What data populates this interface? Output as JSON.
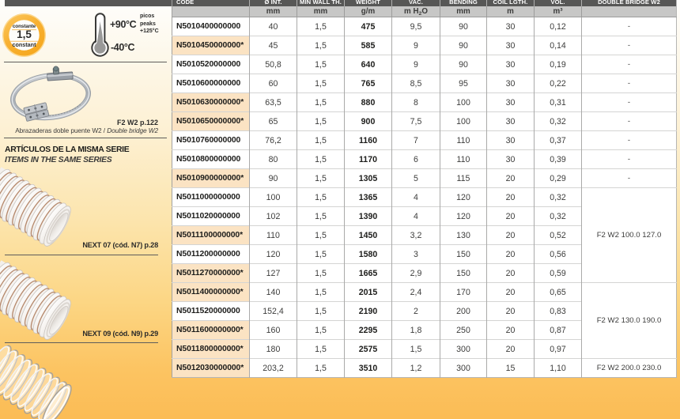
{
  "page": {
    "type": "catalog-datasheet-page",
    "colors": {
      "background_top": "#fefefc",
      "background_bottom": "#fbbc55",
      "header_bar": "#575756",
      "units_row": "#c7c7c6",
      "highlight_peach": "#fbe3c3",
      "badge_orange": "#f8b133"
    }
  },
  "sidebar": {
    "badge": {
      "top_label": "constante",
      "value": "1,5",
      "bottom_label": "constant"
    },
    "thermometer": {
      "max_temp": "+90°C",
      "min_temp": "-40°C",
      "peak_lines": [
        "picos",
        "peaks",
        "+125°C"
      ]
    },
    "clamp": {
      "page_ref": "F2 W2 p.122",
      "caption_es": "Abrazaderas doble puente W2 / ",
      "caption_en": "Double bridge W2"
    },
    "same_series": {
      "title_es": "ARTÍCULOS DE LA MISMA SERIE",
      "title_en": "ITEMS IN THE SAME SERIES",
      "items": [
        {
          "label": "NEXT 07 (cód. N7) p.28"
        },
        {
          "label": "NEXT 09 (cód. N9) p.29"
        }
      ]
    }
  },
  "table": {
    "columns": [
      {
        "label": "CODE",
        "unit": ""
      },
      {
        "label": "Ø INT.",
        "unit": "mm"
      },
      {
        "label": "MIN WALL TH.",
        "unit": "mm"
      },
      {
        "label": "WEIGHT",
        "unit": "g/m"
      },
      {
        "label": "VAC.",
        "unit": "m H₂O"
      },
      {
        "label": "BENDING",
        "unit": "mm"
      },
      {
        "label": "COIL LGTH.",
        "unit": "m"
      },
      {
        "label": "VOL.",
        "unit": "m³"
      },
      {
        "label": "DOUBLE BRIDGE W2",
        "unit": ""
      }
    ],
    "rows": [
      {
        "code": "N5010400000000",
        "starred": false,
        "values": [
          "40",
          "1,5",
          "475",
          "9,5",
          "90",
          "30",
          "0,12"
        ]
      },
      {
        "code": "N5010450000000*",
        "starred": true,
        "values": [
          "45",
          "1,5",
          "585",
          "9",
          "90",
          "30",
          "0,14"
        ]
      },
      {
        "code": "N5010520000000",
        "starred": false,
        "values": [
          "50,8",
          "1,5",
          "640",
          "9",
          "90",
          "30",
          "0,19"
        ]
      },
      {
        "code": "N5010600000000",
        "starred": false,
        "values": [
          "60",
          "1,5",
          "765",
          "8,5",
          "95",
          "30",
          "0,22"
        ]
      },
      {
        "code": "N5010630000000*",
        "starred": true,
        "values": [
          "63,5",
          "1,5",
          "880",
          "8",
          "100",
          "30",
          "0,31"
        ]
      },
      {
        "code": "N5010650000000*",
        "starred": true,
        "values": [
          "65",
          "1,5",
          "900",
          "7,5",
          "100",
          "30",
          "0,32"
        ]
      },
      {
        "code": "N5010760000000",
        "starred": false,
        "values": [
          "76,2",
          "1,5",
          "1160",
          "7",
          "110",
          "30",
          "0,37"
        ]
      },
      {
        "code": "N5010800000000",
        "starred": false,
        "values": [
          "80",
          "1,5",
          "1170",
          "6",
          "110",
          "30",
          "0,39"
        ]
      },
      {
        "code": "N5010900000000*",
        "starred": true,
        "values": [
          "90",
          "1,5",
          "1305",
          "5",
          "115",
          "20",
          "0,29"
        ]
      },
      {
        "code": "N5011000000000",
        "starred": false,
        "values": [
          "100",
          "1,5",
          "1365",
          "4",
          "120",
          "20",
          "0,32"
        ]
      },
      {
        "code": "N5011020000000",
        "starred": false,
        "values": [
          "102",
          "1,5",
          "1390",
          "4",
          "120",
          "20",
          "0,32"
        ]
      },
      {
        "code": "N5011100000000*",
        "starred": true,
        "values": [
          "110",
          "1,5",
          "1450",
          "3,2",
          "130",
          "20",
          "0,52"
        ]
      },
      {
        "code": "N5011200000000",
        "starred": false,
        "values": [
          "120",
          "1,5",
          "1580",
          "3",
          "150",
          "20",
          "0,56"
        ]
      },
      {
        "code": "N5011270000000*",
        "starred": true,
        "values": [
          "127",
          "1,5",
          "1665",
          "2,9",
          "150",
          "20",
          "0,59"
        ]
      },
      {
        "code": "N5011400000000*",
        "starred": true,
        "values": [
          "140",
          "1,5",
          "2015",
          "2,4",
          "170",
          "20",
          "0,65"
        ]
      },
      {
        "code": "N5011520000000",
        "starred": false,
        "values": [
          "152,4",
          "1,5",
          "2190",
          "2",
          "200",
          "20",
          "0,83"
        ]
      },
      {
        "code": "N5011600000000*",
        "starred": true,
        "values": [
          "160",
          "1,5",
          "2295",
          "1,8",
          "250",
          "20",
          "0,87"
        ]
      },
      {
        "code": "N5011800000000*",
        "starred": true,
        "values": [
          "180",
          "1,5",
          "2575",
          "1,5",
          "300",
          "20",
          "0,97"
        ]
      },
      {
        "code": "N5012030000000*",
        "starred": true,
        "values": [
          "203,2",
          "1,5",
          "3510",
          "1,2",
          "300",
          "15",
          "1,10"
        ]
      }
    ],
    "w2_cells": [
      {
        "row": 1,
        "span": 1,
        "text": "-"
      },
      {
        "row": 2,
        "span": 1,
        "text": "-"
      },
      {
        "row": 3,
        "span": 1,
        "text": "-"
      },
      {
        "row": 4,
        "span": 1,
        "text": "-"
      },
      {
        "row": 5,
        "span": 1,
        "text": "-"
      },
      {
        "row": 6,
        "span": 1,
        "text": "-"
      },
      {
        "row": 7,
        "span": 1,
        "text": "-"
      },
      {
        "row": 8,
        "span": 1,
        "text": "-"
      },
      {
        "row": 9,
        "span": 1,
        "text": "-"
      },
      {
        "row": 10,
        "span": 5,
        "text": "F2 W2 100.0 127.0"
      },
      {
        "row": 15,
        "span": 4,
        "text": "F2 W2 130.0 190.0"
      },
      {
        "row": 19,
        "span": 1,
        "text": "F2 W2 200.0 230.0"
      }
    ]
  }
}
